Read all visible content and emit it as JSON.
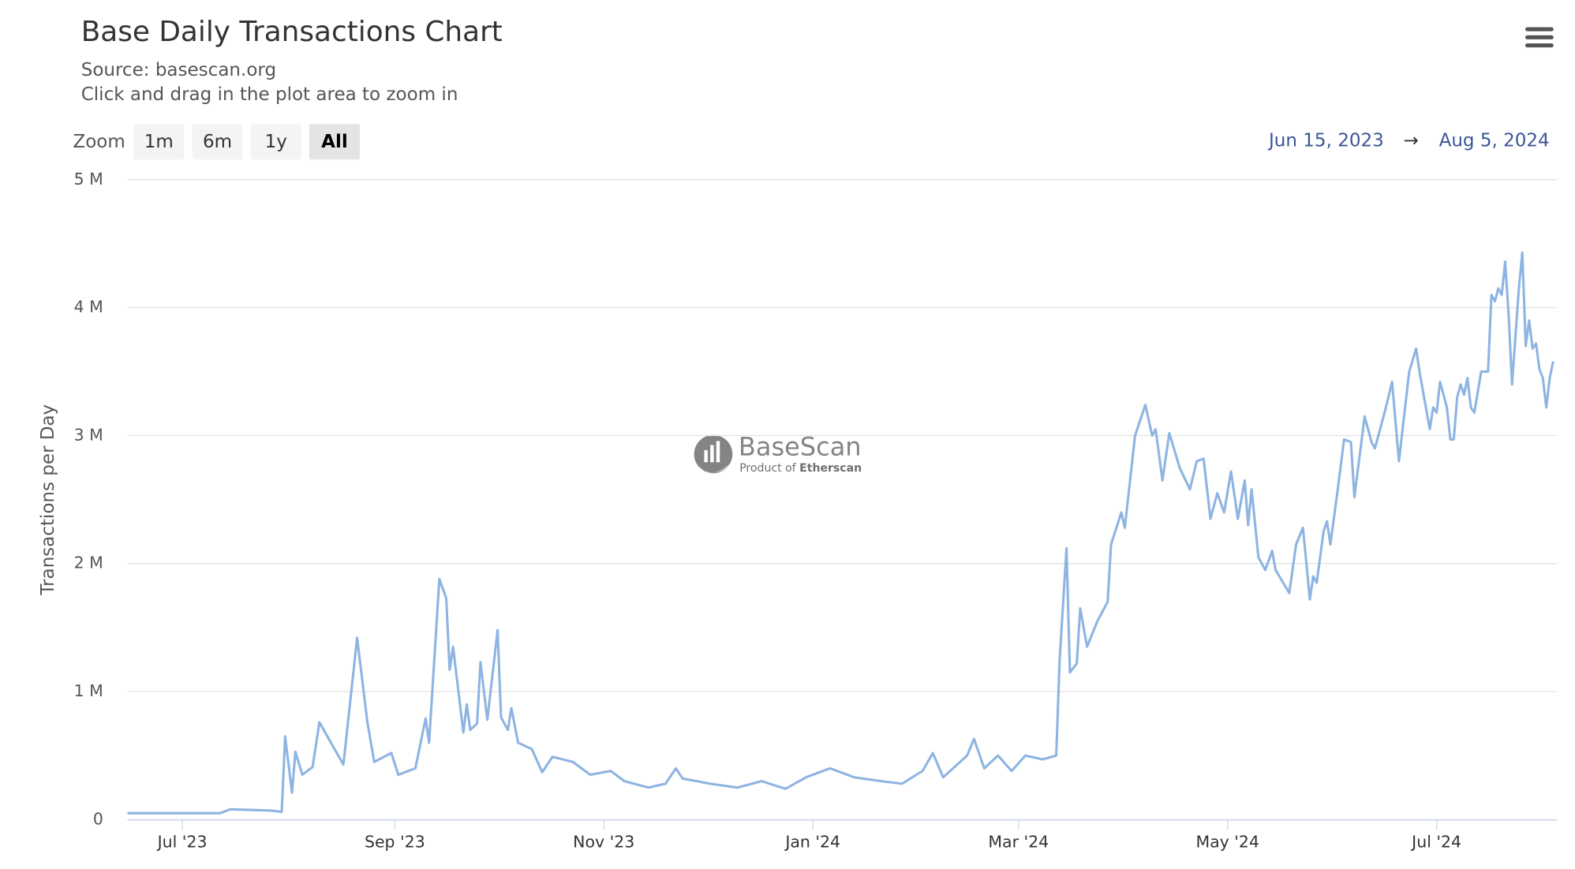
{
  "chart_data": {
    "type": "line",
    "title": "Base Daily Transactions Chart",
    "subtitle": [
      "Source: basescan.org",
      "Click and drag in the plot area to zoom in"
    ],
    "y_label": "Transactions per Day",
    "zoom": {
      "label": "Zoom",
      "buttons": [
        "1m",
        "6m",
        "1y",
        "All"
      ],
      "selected": 3
    },
    "range": {
      "from": "Jun 15, 2023",
      "arrow": "→",
      "to": "Aug 5, 2024"
    },
    "watermark": {
      "name": "BaseScan",
      "tagline_prefix": "Product of",
      "tagline_brand": "Etherscan"
    },
    "grid": true,
    "xlim": [
      "2023-06-15",
      "2024-08-05"
    ],
    "xticks": [
      {
        "value": "2023-07-01",
        "label": "Jul '23"
      },
      {
        "value": "2023-09-01",
        "label": "Sep '23"
      },
      {
        "value": "2023-11-01",
        "label": "Nov '23"
      },
      {
        "value": "2024-01-01",
        "label": "Jan '24"
      },
      {
        "value": "2024-03-01",
        "label": "Mar '24"
      },
      {
        "value": "2024-05-01",
        "label": "May '24"
      },
      {
        "value": "2024-07-01",
        "label": "Jul '24"
      }
    ],
    "ylim": [
      0,
      5
    ],
    "yticks": [
      0,
      {
        "value": 1,
        "label": "1 M"
      },
      {
        "value": 2,
        "label": "2 M"
      },
      {
        "value": 3,
        "label": "3 M"
      },
      {
        "value": 4,
        "label": "4 M"
      },
      {
        "value": 5,
        "label": "5 M"
      }
    ],
    "x": [
      "2023-06-15",
      "2023-07-12",
      "2023-07-15",
      "2023-07-27",
      "2023-07-30",
      "2023-07-31",
      "2023-08-02",
      "2023-08-03",
      "2023-08-05",
      "2023-08-08",
      "2023-08-10",
      "2023-08-14",
      "2023-08-17",
      "2023-08-21",
      "2023-08-24",
      "2023-08-26",
      "2023-08-31",
      "2023-09-02",
      "2023-09-07",
      "2023-09-10",
      "2023-09-11",
      "2023-09-14",
      "2023-09-16",
      "2023-09-17",
      "2023-09-18",
      "2023-09-21",
      "2023-09-22",
      "2023-09-23",
      "2023-09-25",
      "2023-09-26",
      "2023-09-28",
      "2023-10-01",
      "2023-10-02",
      "2023-10-04",
      "2023-10-05",
      "2023-10-07",
      "2023-10-11",
      "2023-10-14",
      "2023-10-17",
      "2023-10-23",
      "2023-10-28",
      "2023-11-03",
      "2023-11-07",
      "2023-11-14",
      "2023-11-19",
      "2023-11-22",
      "2023-11-24",
      "2023-12-02",
      "2023-12-10",
      "2023-12-17",
      "2023-12-24",
      "2023-12-30",
      "2024-01-06",
      "2024-01-13",
      "2024-01-21",
      "2024-01-27",
      "2024-02-02",
      "2024-02-05",
      "2024-02-08",
      "2024-02-15",
      "2024-02-17",
      "2024-02-20",
      "2024-02-24",
      "2024-02-28",
      "2024-03-03",
      "2024-03-08",
      "2024-03-12",
      "2024-03-13",
      "2024-03-15",
      "2024-03-16",
      "2024-03-18",
      "2024-03-19",
      "2024-03-21",
      "2024-03-24",
      "2024-03-27",
      "2024-03-28",
      "2024-03-31",
      "2024-04-01",
      "2024-04-04",
      "2024-04-07",
      "2024-04-09",
      "2024-04-10",
      "2024-04-12",
      "2024-04-14",
      "2024-04-17",
      "2024-04-20",
      "2024-04-22",
      "2024-04-24",
      "2024-04-26",
      "2024-04-28",
      "2024-04-30",
      "2024-05-02",
      "2024-05-04",
      "2024-05-06",
      "2024-05-07",
      "2024-05-08",
      "2024-05-10",
      "2024-05-12",
      "2024-05-14",
      "2024-05-15",
      "2024-05-19",
      "2024-05-21",
      "2024-05-23",
      "2024-05-25",
      "2024-05-26",
      "2024-05-27",
      "2024-05-29",
      "2024-05-30",
      "2024-05-31",
      "2024-06-02",
      "2024-06-04",
      "2024-06-06",
      "2024-06-07",
      "2024-06-10",
      "2024-06-12",
      "2024-06-13",
      "2024-06-16",
      "2024-06-18",
      "2024-06-20",
      "2024-06-23",
      "2024-06-25",
      "2024-06-26",
      "2024-06-29",
      "2024-06-30",
      "2024-07-01",
      "2024-07-02",
      "2024-07-04",
      "2024-07-05",
      "2024-07-06",
      "2024-07-07",
      "2024-07-08",
      "2024-07-09",
      "2024-07-10",
      "2024-07-11",
      "2024-07-12",
      "2024-07-14",
      "2024-07-16",
      "2024-07-17",
      "2024-07-18",
      "2024-07-19",
      "2024-07-20",
      "2024-07-21",
      "2024-07-22",
      "2024-07-23",
      "2024-07-25",
      "2024-07-26",
      "2024-07-27",
      "2024-07-28",
      "2024-07-29",
      "2024-07-30",
      "2024-07-31",
      "2024-08-01",
      "2024-08-02",
      "2024-08-03",
      "2024-08-04"
    ],
    "series": [
      {
        "name": "Transactions per Day",
        "color": "#8db4e2",
        "values": [
          0.05,
          0.05,
          0.08,
          0.07,
          0.06,
          0.65,
          0.21,
          0.53,
          0.35,
          0.41,
          0.76,
          0.57,
          0.43,
          1.42,
          0.76,
          0.45,
          0.52,
          0.35,
          0.4,
          0.79,
          0.6,
          1.88,
          1.73,
          1.17,
          1.35,
          0.68,
          0.9,
          0.7,
          0.75,
          1.23,
          0.78,
          1.48,
          0.8,
          0.7,
          0.87,
          0.6,
          0.55,
          0.37,
          0.49,
          0.45,
          0.35,
          0.38,
          0.3,
          0.25,
          0.28,
          0.4,
          0.32,
          0.28,
          0.25,
          0.3,
          0.24,
          0.33,
          0.4,
          0.33,
          0.3,
          0.28,
          0.38,
          0.52,
          0.33,
          0.5,
          0.63,
          0.4,
          0.5,
          0.38,
          0.5,
          0.47,
          0.5,
          1.25,
          2.12,
          1.15,
          1.22,
          1.65,
          1.35,
          1.55,
          1.7,
          2.15,
          2.4,
          2.28,
          3.0,
          3.24,
          3.0,
          3.05,
          2.65,
          3.02,
          2.75,
          2.58,
          2.8,
          2.82,
          2.35,
          2.55,
          2.4,
          2.72,
          2.35,
          2.65,
          2.3,
          2.58,
          2.05,
          1.95,
          2.1,
          1.95,
          1.77,
          2.15,
          2.28,
          1.72,
          1.9,
          1.85,
          2.25,
          2.33,
          2.15,
          2.55,
          2.97,
          2.95,
          2.52,
          3.15,
          2.95,
          2.9,
          3.2,
          3.42,
          2.8,
          3.5,
          3.68,
          3.5,
          3.05,
          3.22,
          3.18,
          3.42,
          3.22,
          2.97,
          2.97,
          3.3,
          3.4,
          3.32,
          3.45,
          3.22,
          3.18,
          3.5,
          3.5,
          4.1,
          4.05,
          4.15,
          4.1,
          4.36,
          3.95,
          3.4,
          4.15,
          4.43,
          3.7,
          3.9,
          3.68,
          3.72,
          3.52,
          3.45,
          3.22,
          3.45,
          3.58
        ]
      }
    ]
  }
}
